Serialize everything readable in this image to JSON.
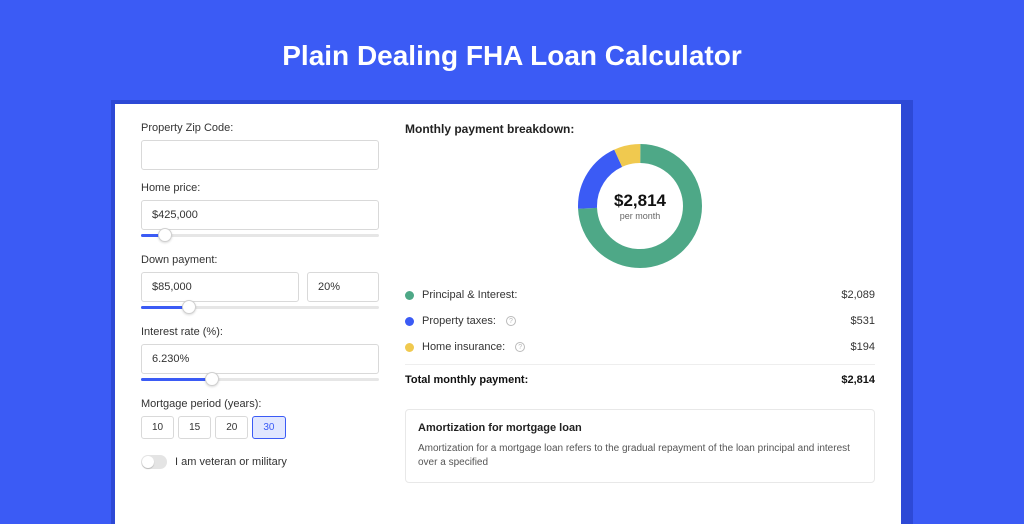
{
  "page": {
    "title": "Plain Dealing FHA Loan Calculator",
    "bg_color": "#3b5bf5",
    "shadow_color": "#2d49d6",
    "card_bg": "#ffffff"
  },
  "form": {
    "zip": {
      "label": "Property Zip Code:",
      "value": ""
    },
    "home_price": {
      "label": "Home price:",
      "value": "$425,000",
      "slider_pct": 10
    },
    "down_payment": {
      "label": "Down payment:",
      "value": "$85,000",
      "pct_value": "20%",
      "slider_pct": 20
    },
    "interest_rate": {
      "label": "Interest rate (%):",
      "value": "6.230%",
      "slider_pct": 30
    },
    "mortgage_period": {
      "label": "Mortgage period (years):",
      "options": [
        "10",
        "15",
        "20",
        "30"
      ],
      "active_index": 3
    },
    "veteran": {
      "label": "I am veteran or military",
      "checked": false
    }
  },
  "breakdown": {
    "title": "Monthly payment breakdown:",
    "donut": {
      "amount": "$2,814",
      "sub": "per month",
      "size": 124,
      "stroke": 19,
      "slices": [
        {
          "key": "principal_interest",
          "value": 2089,
          "color": "#4ea887"
        },
        {
          "key": "property_taxes",
          "value": 531,
          "color": "#3b5bf5"
        },
        {
          "key": "home_insurance",
          "value": 194,
          "color": "#f0c94f"
        }
      ]
    },
    "items": [
      {
        "label": "Principal & Interest:",
        "amount": "$2,089",
        "color": "#4ea887",
        "info": false
      },
      {
        "label": "Property taxes:",
        "amount": "$531",
        "color": "#3b5bf5",
        "info": true
      },
      {
        "label": "Home insurance:",
        "amount": "$194",
        "color": "#f0c94f",
        "info": true
      }
    ],
    "total": {
      "label": "Total monthly payment:",
      "amount": "$2,814"
    }
  },
  "amortization": {
    "title": "Amortization for mortgage loan",
    "text": "Amortization for a mortgage loan refers to the gradual repayment of the loan principal and interest over a specified"
  }
}
